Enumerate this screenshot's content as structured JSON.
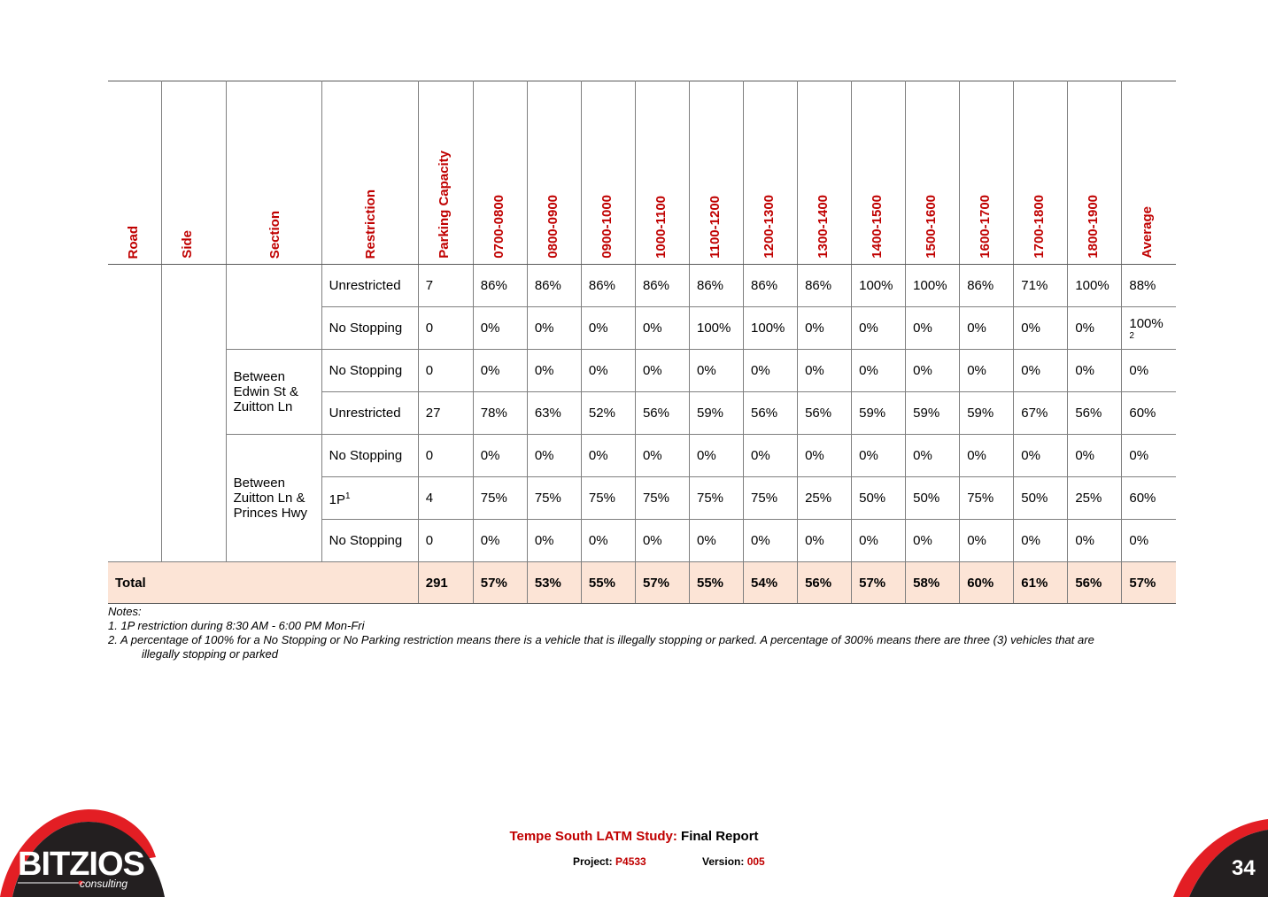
{
  "table": {
    "headers": [
      "Road",
      "Side",
      "Section",
      "Restriction",
      "Parking Capacity",
      "0700-0800",
      "0800-0900",
      "0900-1000",
      "1000-1100",
      "1100-1200",
      "1200-1300",
      "1300-1400",
      "1400-1500",
      "1500-1600",
      "1600-1700",
      "1700-1800",
      "1800-1900",
      "Average"
    ],
    "sections": [
      "Between Edwin St & Zuitton Ln",
      "Between Zuitton Ln & Princes Hwy"
    ],
    "rows": [
      {
        "restriction": "Unrestricted",
        "cells": [
          "7",
          "86%",
          "86%",
          "86%",
          "86%",
          "86%",
          "86%",
          "86%",
          "100%",
          "100%",
          "86%",
          "71%",
          "100%",
          "88%"
        ]
      },
      {
        "restriction": "No Stopping",
        "cells": [
          "0",
          "0%",
          "0%",
          "0%",
          "0%",
          "100%",
          "100%",
          "0%",
          "0%",
          "0%",
          "0%",
          "0%",
          "0%",
          "100%"
        ],
        "avg_note": "2"
      },
      {
        "restriction": "No Stopping",
        "cells": [
          "0",
          "0%",
          "0%",
          "0%",
          "0%",
          "0%",
          "0%",
          "0%",
          "0%",
          "0%",
          "0%",
          "0%",
          "0%",
          "0%"
        ]
      },
      {
        "restriction": "Unrestricted",
        "cells": [
          "27",
          "78%",
          "63%",
          "52%",
          "56%",
          "59%",
          "56%",
          "56%",
          "59%",
          "59%",
          "59%",
          "67%",
          "56%",
          "60%"
        ]
      },
      {
        "restriction": "No Stopping",
        "cells": [
          "0",
          "0%",
          "0%",
          "0%",
          "0%",
          "0%",
          "0%",
          "0%",
          "0%",
          "0%",
          "0%",
          "0%",
          "0%",
          "0%"
        ]
      },
      {
        "restriction": "1P",
        "restriction_note": "1",
        "cells": [
          "4",
          "75%",
          "75%",
          "75%",
          "75%",
          "75%",
          "75%",
          "25%",
          "50%",
          "50%",
          "75%",
          "50%",
          "25%",
          "60%"
        ]
      },
      {
        "restriction": "No Stopping",
        "cells": [
          "0",
          "0%",
          "0%",
          "0%",
          "0%",
          "0%",
          "0%",
          "0%",
          "0%",
          "0%",
          "0%",
          "0%",
          "0%",
          "0%"
        ]
      }
    ],
    "total": {
      "label": "Total",
      "cells": [
        "291",
        "57%",
        "53%",
        "55%",
        "57%",
        "55%",
        "54%",
        "56%",
        "57%",
        "58%",
        "60%",
        "61%",
        "56%",
        "57%"
      ]
    }
  },
  "notes": {
    "heading": "Notes:",
    "items": [
      "1. 1P restriction during 8:30 AM - 6:00 PM Mon-Fri",
      "2. A percentage of 100% for a No Stopping or No Parking restriction means there is a vehicle that is illegally stopping or parked. A percentage of 300% means there are three (3) vehicles that are",
      "illegally stopping or parked"
    ]
  },
  "footer": {
    "title_red": "Tempe South LATM Study:",
    "title_black": "Final Report",
    "project_label": "Project:",
    "project_value": "P4533",
    "version_label": "Version:",
    "version_value": "005",
    "page_number": "34",
    "logo_text": "BITZIOS",
    "logo_sub": "consulting",
    "brand_red": "#e31e24",
    "brand_dark": "#231f20",
    "accent_red": "#c00000"
  }
}
